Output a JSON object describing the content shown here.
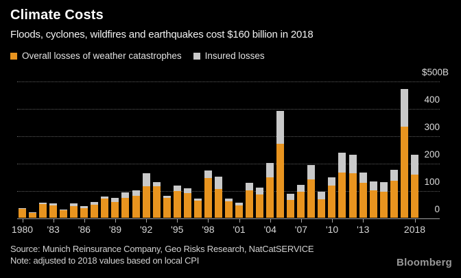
{
  "header": {
    "title": "Climate Costs",
    "subtitle": "Floods, cyclones, wildfires and earthquakes cost $160 billion in 2018"
  },
  "legend": {
    "overall_label": "Overall losses of weather catastrophes",
    "insured_label": "Insured losses"
  },
  "footer": {
    "source": "Source: Munich Reinsurance Company, Geo Risks Research, NatCatSERVICE",
    "note": "Note: adjusted to 2018 values based on local CPI",
    "brand": "Bloomberg"
  },
  "colors": {
    "overall": "#E8941F",
    "insured": "#C9C9C9",
    "background": "#000000"
  },
  "chart_data": {
    "type": "bar",
    "stacked": true,
    "title": "Climate Costs",
    "subtitle": "Floods, cyclones, wildfires and earthquakes cost $160 billion in 2018",
    "unit": "billion USD (adjusted to 2018 values)",
    "ylim": [
      0,
      500
    ],
    "grid": "dotted horizontal",
    "legend_position": "top-left",
    "categories": [
      1980,
      1981,
      1982,
      1983,
      1984,
      1985,
      1986,
      1987,
      1988,
      1989,
      1990,
      1991,
      1992,
      1993,
      1994,
      1995,
      1996,
      1997,
      1998,
      1999,
      2000,
      2001,
      2002,
      2003,
      2004,
      2005,
      2006,
      2007,
      2008,
      2009,
      2010,
      2011,
      2012,
      2013,
      2014,
      2015,
      2016,
      2017,
      2018
    ],
    "series": [
      {
        "name": "Overall losses of weather catastrophes",
        "color": "#E8941F",
        "values": [
          32,
          17,
          50,
          44,
          28,
          42,
          36,
          48,
          69,
          58,
          73,
          79,
          116,
          114,
          73,
          98,
          90,
          62,
          145,
          106,
          59,
          44,
          100,
          86,
          148,
          270,
          66,
          94,
          140,
          67,
          118,
          166,
          163,
          128,
          100,
          94,
          136,
          333,
          157
        ]
      },
      {
        "name": "Insured losses",
        "color": "#C9C9C9",
        "values": [
          3,
          3,
          6,
          8,
          3,
          10,
          6,
          10,
          8,
          14,
          19,
          22,
          46,
          17,
          8,
          19,
          17,
          7,
          27,
          43,
          10,
          11,
          27,
          23,
          52,
          120,
          22,
          25,
          53,
          27,
          30,
          72,
          68,
          38,
          32,
          37,
          39,
          138,
          72
        ]
      }
    ],
    "y_ticks": [
      {
        "label": "$500B",
        "value": 500
      },
      {
        "label": "400",
        "value": 400
      },
      {
        "label": "300",
        "value": 300
      },
      {
        "label": "200",
        "value": 200
      },
      {
        "label": "100",
        "value": 100
      },
      {
        "label": "0",
        "value": 0
      }
    ],
    "x_ticks": [
      {
        "label": "1980",
        "index": 0
      },
      {
        "label": "'83",
        "index": 3
      },
      {
        "label": "'86",
        "index": 6
      },
      {
        "label": "'89",
        "index": 9
      },
      {
        "label": "'92",
        "index": 12
      },
      {
        "label": "'95",
        "index": 15
      },
      {
        "label": "'98",
        "index": 18
      },
      {
        "label": "'01",
        "index": 21
      },
      {
        "label": "'04",
        "index": 24
      },
      {
        "label": "'07",
        "index": 27
      },
      {
        "label": "'10",
        "index": 30
      },
      {
        "label": "'13",
        "index": 33
      },
      {
        "label": "2018",
        "index": 38
      }
    ]
  }
}
